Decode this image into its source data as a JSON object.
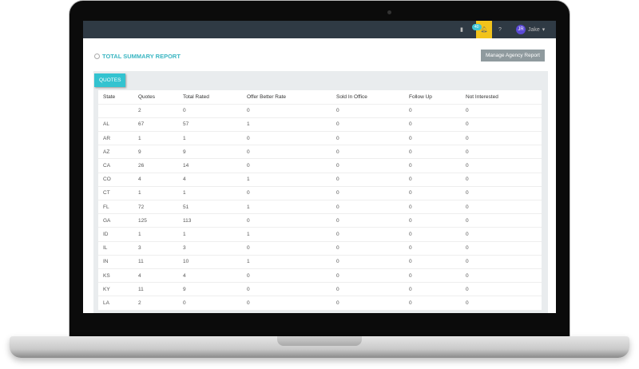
{
  "topbar": {
    "badge": "40",
    "user_initials": "JR",
    "user_name": "Jake"
  },
  "page": {
    "title": "TOTAL SUMMARY REPORT",
    "manage_button": "Manage Agency Report",
    "tab": "QUOTES"
  },
  "table": {
    "headers": [
      "State",
      "Quotes",
      "Total Rated",
      "Offer Better Rate",
      "Sold In Office",
      "Follow Up",
      "Not Interested"
    ],
    "rows": [
      [
        "",
        "2",
        "0",
        "0",
        "0",
        "0",
        "0"
      ],
      [
        "AL",
        "67",
        "57",
        "1",
        "0",
        "0",
        "0"
      ],
      [
        "AR",
        "1",
        "1",
        "0",
        "0",
        "0",
        "0"
      ],
      [
        "AZ",
        "9",
        "9",
        "0",
        "0",
        "0",
        "0"
      ],
      [
        "CA",
        "26",
        "14",
        "0",
        "0",
        "0",
        "0"
      ],
      [
        "CO",
        "4",
        "4",
        "1",
        "0",
        "0",
        "0"
      ],
      [
        "CT",
        "1",
        "1",
        "0",
        "0",
        "0",
        "0"
      ],
      [
        "FL",
        "72",
        "51",
        "1",
        "0",
        "0",
        "0"
      ],
      [
        "GA",
        "125",
        "113",
        "0",
        "0",
        "0",
        "0"
      ],
      [
        "ID",
        "1",
        "1",
        "1",
        "0",
        "0",
        "0"
      ],
      [
        "IL",
        "3",
        "3",
        "0",
        "0",
        "0",
        "0"
      ],
      [
        "IN",
        "11",
        "10",
        "1",
        "0",
        "0",
        "0"
      ],
      [
        "KS",
        "4",
        "4",
        "0",
        "0",
        "0",
        "0"
      ],
      [
        "KY",
        "11",
        "9",
        "0",
        "0",
        "0",
        "0"
      ],
      [
        "LA",
        "2",
        "0",
        "0",
        "0",
        "0",
        "0"
      ]
    ]
  }
}
